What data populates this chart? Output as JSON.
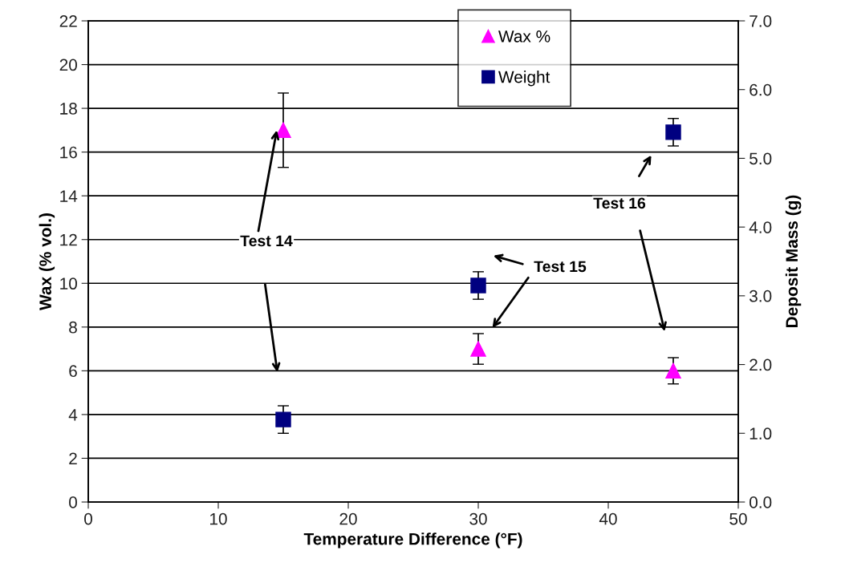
{
  "chart_data": {
    "type": "scatter",
    "xlabel": "Temperature Difference (°F)",
    "ylabel": "Wax (% vol.)",
    "y2label": "Deposit Mass (g)",
    "xlim": [
      0,
      50
    ],
    "xticks": [
      0,
      10,
      20,
      30,
      40,
      50
    ],
    "ylim": [
      0,
      22
    ],
    "yticks": [
      0,
      2,
      4,
      6,
      8,
      10,
      12,
      14,
      16,
      18,
      20,
      22
    ],
    "y2lim": [
      0,
      7
    ],
    "y2ticks": [
      {
        "value": 0,
        "label": "0.0"
      },
      {
        "value": 1,
        "label": "1.0"
      },
      {
        "value": 2,
        "label": "2.0"
      },
      {
        "value": 3,
        "label": "3.0"
      },
      {
        "value": 4,
        "label": "4.0"
      },
      {
        "value": 5,
        "label": "5.0"
      },
      {
        "value": 6,
        "label": "6.0"
      },
      {
        "value": 7,
        "label": "7.0"
      }
    ],
    "grid": "y",
    "legend": "top right",
    "series": [
      {
        "name": "Wax %",
        "color": "#ff00ff",
        "marker": "triangle",
        "x": [
          15,
          30,
          45
        ],
        "values": [
          17,
          7,
          6
        ],
        "errors": [
          1.7,
          0.7,
          0.6
        ]
      },
      {
        "name": "Weight",
        "color": "#000080",
        "marker": "square",
        "axis": "y2",
        "x": [
          15,
          30,
          45
        ],
        "values": [
          1.2,
          3.15,
          5.38
        ],
        "errors": [
          0.2,
          0.2,
          0.2
        ]
      }
    ],
    "annotations": [
      {
        "text": "Test 14",
        "x": 14.5,
        "y": 17
      },
      "Test 15",
      "Test 16"
    ]
  }
}
